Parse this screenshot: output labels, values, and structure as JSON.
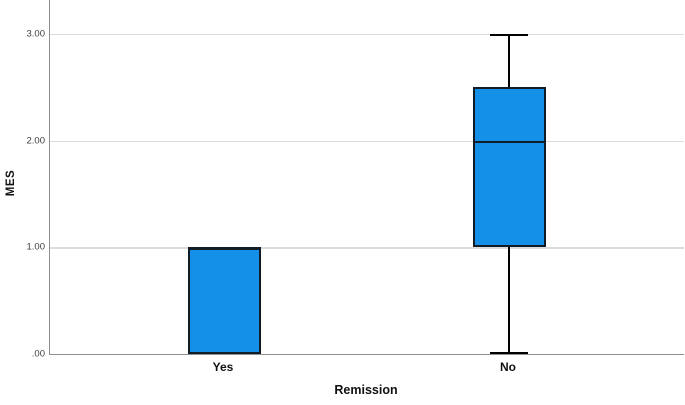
{
  "chart_data": {
    "type": "boxplot",
    "title": "",
    "xlabel": "Remission",
    "ylabel": "MES",
    "categories": [
      "Yes",
      "No"
    ],
    "series": [
      {
        "category": "Yes",
        "min": 0,
        "q1": 0,
        "median": 1,
        "q3": 1,
        "max": 1
      },
      {
        "category": "No",
        "min": 0,
        "q1": 1,
        "median": 2,
        "q3": 2.5,
        "max": 3
      }
    ],
    "y_ticks": [
      {
        "value": 0,
        "label": ".00"
      },
      {
        "value": 1,
        "label": "1.00"
      },
      {
        "value": 2,
        "label": "2.00"
      },
      {
        "value": 3,
        "label": "3.00"
      }
    ],
    "ylim": [
      0,
      3.2
    ],
    "grid": "horizontal",
    "legend_position": "none",
    "colors": {
      "box_fill": "#1590e9",
      "box_border": "#111c26",
      "whisker": "#000000",
      "gridline": "#dcdcdc",
      "axis_line": "#8f8f8f",
      "tick_label": "#3d3d3d",
      "axis_title": "#111111",
      "background": "#ffffff"
    }
  }
}
